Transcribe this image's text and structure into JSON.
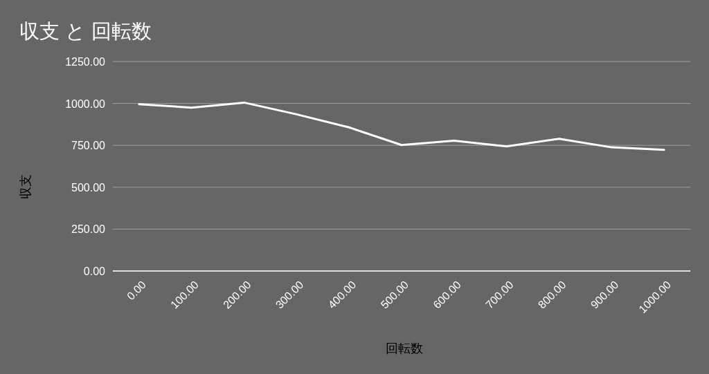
{
  "chart_data": {
    "type": "line",
    "title": "収支 と 回転数",
    "xlabel": "回転数",
    "ylabel": "収支",
    "categories": [
      "0.00",
      "100.00",
      "200.00",
      "300.00",
      "400.00",
      "500.00",
      "600.00",
      "700.00",
      "800.00",
      "900.00",
      "1000.00"
    ],
    "series": [
      {
        "color": "#ffffff",
        "values": [
          995,
          975,
          1005,
          935,
          857,
          752,
          778,
          744,
          789,
          738,
          723
        ]
      }
    ],
    "ylim": [
      0,
      1250
    ],
    "yticks": [
      {
        "value": 0,
        "label": "0.00"
      },
      {
        "value": 250,
        "label": "250.00"
      },
      {
        "value": 500,
        "label": "500.00"
      },
      {
        "value": 750,
        "label": "750.00"
      },
      {
        "value": 1000,
        "label": "1000.00"
      },
      {
        "value": 1250,
        "label": "1250.00"
      }
    ],
    "grid": "y",
    "line_style": "solid"
  }
}
